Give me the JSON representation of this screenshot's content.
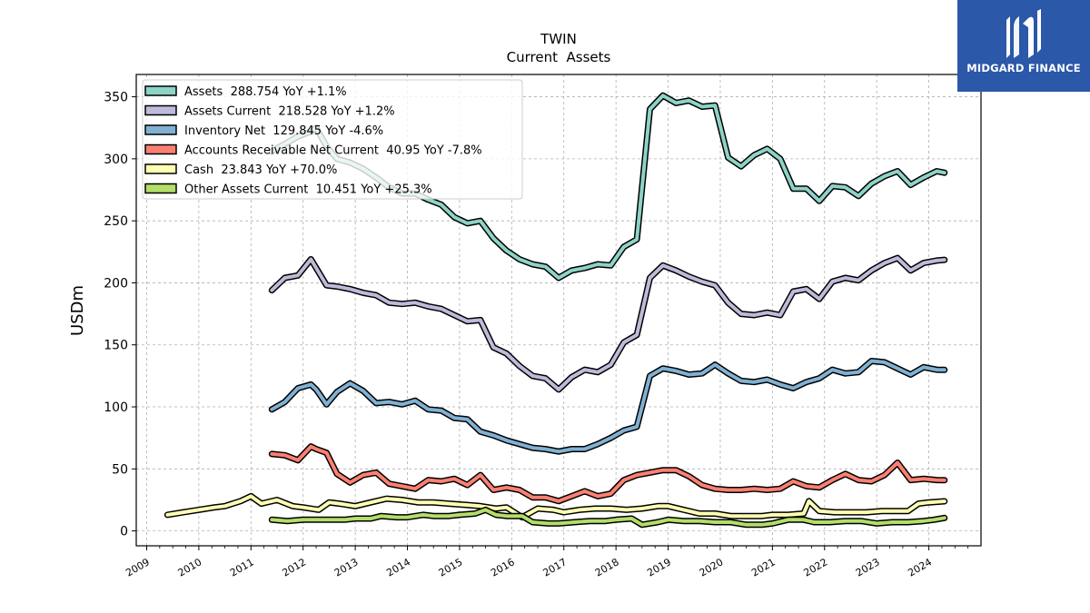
{
  "logo": {
    "text": "MIDGARD FINANCE",
    "icon": "midgard-m-logo-icon"
  },
  "colors": {
    "assets": "#8dd3c7",
    "assets_current": "#bebada",
    "inventory": "#80b1d3",
    "receivables": "#fb8072",
    "cash": "#ffffb3",
    "other": "#b3de69",
    "outline": "#000000",
    "logo_bg": "#2b58a8"
  },
  "chart_data": {
    "type": "line",
    "title": "TWIN",
    "subtitle": "Current  Assets",
    "xlabel": "",
    "ylabel": "USDm",
    "xlim": [
      2008.8,
      2025.0
    ],
    "ylim": [
      -12,
      368
    ],
    "yticks": [
      0,
      50,
      100,
      150,
      200,
      250,
      300,
      350
    ],
    "xticks": [
      "2009",
      "2010",
      "2011",
      "2012",
      "2013",
      "2014",
      "2015",
      "2016",
      "2017",
      "2018",
      "2019",
      "2020",
      "2021",
      "2022",
      "2023",
      "2024"
    ],
    "grid": true,
    "legend_position": "top-left",
    "series": [
      {
        "name": "Assets  288.754 YoY +1.1%",
        "color_key": "assets",
        "x": [
          2011.4,
          2011.65,
          2011.9,
          2012.15,
          2012.25,
          2012.45,
          2012.65,
          2012.9,
          2013.15,
          2013.4,
          2013.65,
          2013.9,
          2014.15,
          2014.4,
          2014.65,
          2014.9,
          2015.15,
          2015.4,
          2015.65,
          2015.9,
          2016.15,
          2016.4,
          2016.65,
          2016.9,
          2017.15,
          2017.4,
          2017.65,
          2017.9,
          2018.15,
          2018.4,
          2018.65,
          2018.9,
          2019.15,
          2019.4,
          2019.65,
          2019.9,
          2020.15,
          2020.4,
          2020.65,
          2020.9,
          2021.15,
          2021.4,
          2021.65,
          2021.9,
          2022.15,
          2022.4,
          2022.65,
          2022.9,
          2023.15,
          2023.4,
          2023.65,
          2023.9,
          2024.15,
          2024.3
        ],
        "y": [
          306,
          312,
          318,
          322,
          325,
          310,
          300,
          297,
          292,
          285,
          277,
          272,
          272,
          267,
          263,
          253,
          248,
          250,
          236,
          226,
          219,
          215,
          213,
          204,
          210,
          212,
          215,
          214,
          229,
          235,
          340,
          351,
          345,
          347,
          342,
          343,
          301,
          294,
          303,
          308,
          300,
          276,
          276,
          266,
          278,
          277,
          270,
          280,
          286,
          290,
          279,
          285,
          290,
          288.754
        ]
      },
      {
        "name": "Assets Current  218.528 YoY +1.2%",
        "color_key": "assets_current",
        "x": [
          2011.4,
          2011.65,
          2011.9,
          2012.15,
          2012.25,
          2012.45,
          2012.65,
          2012.9,
          2013.15,
          2013.4,
          2013.65,
          2013.9,
          2014.15,
          2014.4,
          2014.65,
          2014.9,
          2015.15,
          2015.4,
          2015.65,
          2015.9,
          2016.15,
          2016.4,
          2016.65,
          2016.9,
          2017.15,
          2017.4,
          2017.65,
          2017.9,
          2018.15,
          2018.4,
          2018.65,
          2018.9,
          2019.15,
          2019.4,
          2019.65,
          2019.9,
          2020.15,
          2020.4,
          2020.65,
          2020.9,
          2021.15,
          2021.4,
          2021.65,
          2021.9,
          2022.15,
          2022.4,
          2022.65,
          2022.9,
          2023.15,
          2023.4,
          2023.65,
          2023.9,
          2024.15,
          2024.3
        ],
        "y": [
          194,
          204,
          206,
          219,
          212,
          198,
          197,
          195,
          192,
          190,
          184,
          183,
          184,
          181,
          179,
          174,
          169,
          170,
          148,
          143,
          133,
          125,
          123,
          114,
          124,
          130,
          128,
          134,
          152,
          158,
          204,
          214,
          210,
          205,
          201,
          198,
          184,
          175,
          174,
          176,
          174,
          193,
          195,
          187,
          201,
          204,
          202,
          210,
          216,
          220,
          210,
          216,
          218,
          218.528
        ]
      },
      {
        "name": "Inventory Net  129.845 YoY -4.6%",
        "color_key": "inventory",
        "x": [
          2011.4,
          2011.65,
          2011.9,
          2012.15,
          2012.25,
          2012.45,
          2012.65,
          2012.9,
          2013.15,
          2013.4,
          2013.65,
          2013.9,
          2014.15,
          2014.4,
          2014.65,
          2014.9,
          2015.15,
          2015.4,
          2015.65,
          2015.9,
          2016.15,
          2016.4,
          2016.65,
          2016.9,
          2017.15,
          2017.4,
          2017.65,
          2017.9,
          2018.15,
          2018.4,
          2018.65,
          2018.9,
          2019.15,
          2019.4,
          2019.65,
          2019.9,
          2020.15,
          2020.4,
          2020.65,
          2020.9,
          2021.15,
          2021.4,
          2021.65,
          2021.9,
          2022.15,
          2022.4,
          2022.65,
          2022.9,
          2023.15,
          2023.4,
          2023.65,
          2023.9,
          2024.15,
          2024.3
        ],
        "y": [
          98,
          104,
          115,
          118,
          114,
          102,
          112,
          119,
          113,
          103,
          104,
          102,
          105,
          98,
          97,
          91,
          90,
          80,
          77,
          73,
          70,
          67,
          66,
          64,
          66,
          66,
          70,
          75,
          81,
          84,
          125,
          131,
          129,
          126,
          127,
          134,
          127,
          121,
          120,
          122,
          118,
          115,
          120,
          123,
          130,
          127,
          128,
          137,
          136,
          131,
          126,
          132,
          130,
          129.845
        ]
      },
      {
        "name": "Accounts Receivable Net Current  40.95 YoY -7.8%",
        "color_key": "receivables",
        "x": [
          2011.4,
          2011.65,
          2011.9,
          2012.15,
          2012.25,
          2012.45,
          2012.65,
          2012.9,
          2013.15,
          2013.4,
          2013.65,
          2013.9,
          2014.15,
          2014.4,
          2014.65,
          2014.9,
          2015.15,
          2015.4,
          2015.65,
          2015.9,
          2016.15,
          2016.4,
          2016.65,
          2016.9,
          2017.15,
          2017.4,
          2017.65,
          2017.9,
          2018.15,
          2018.4,
          2018.65,
          2018.9,
          2019.15,
          2019.4,
          2019.65,
          2019.9,
          2020.15,
          2020.4,
          2020.65,
          2020.9,
          2021.15,
          2021.4,
          2021.65,
          2021.9,
          2022.15,
          2022.4,
          2022.65,
          2022.9,
          2023.15,
          2023.4,
          2023.65,
          2023.9,
          2024.15,
          2024.3
        ],
        "y": [
          62,
          61,
          57,
          68,
          66,
          63,
          46,
          39,
          45,
          47,
          38,
          36,
          34,
          41,
          40,
          42,
          37,
          45,
          33,
          35,
          33,
          27,
          27,
          24,
          28,
          32,
          28,
          30,
          41,
          45,
          47,
          49,
          49,
          44,
          37,
          34,
          33,
          33,
          34,
          33,
          34,
          40,
          36,
          35,
          41,
          46,
          41,
          40,
          45,
          55,
          41,
          42,
          41,
          40.95
        ]
      },
      {
        "name": "Cash  23.843 YoY +70.0%",
        "color_key": "cash",
        "x": [
          2009.4,
          2009.7,
          2010.0,
          2010.3,
          2010.5,
          2010.8,
          2011.0,
          2011.2,
          2011.5,
          2011.8,
          2012.0,
          2012.3,
          2012.5,
          2012.7,
          2013.0,
          2013.3,
          2013.6,
          2013.9,
          2014.2,
          2014.5,
          2014.8,
          2015.1,
          2015.4,
          2015.7,
          2015.9,
          2016.2,
          2016.5,
          2016.8,
          2017.0,
          2017.3,
          2017.6,
          2017.9,
          2018.2,
          2018.5,
          2018.8,
          2019.0,
          2019.3,
          2019.6,
          2019.9,
          2020.2,
          2020.5,
          2020.8,
          2021.0,
          2021.3,
          2021.6,
          2021.7,
          2021.9,
          2022.2,
          2022.5,
          2022.8,
          2023.1,
          2023.4,
          2023.6,
          2023.8,
          2024.0,
          2024.3
        ],
        "y": [
          13,
          15,
          17,
          19,
          20,
          24,
          28,
          22,
          25,
          20,
          19,
          17,
          23,
          22,
          20,
          23,
          26,
          25,
          23,
          23,
          22,
          21,
          20,
          18,
          19,
          11,
          18,
          17,
          15,
          17,
          18,
          18,
          17,
          18,
          20,
          20,
          17,
          14,
          14,
          12,
          12,
          12,
          13,
          13,
          14,
          24,
          16,
          15,
          15,
          15,
          16,
          16,
          16,
          22,
          23,
          23.843
        ]
      },
      {
        "name": "Other Assets Current  10.451 YoY +25.3%",
        "color_key": "other",
        "x": [
          2011.4,
          2011.7,
          2012.0,
          2012.3,
          2012.5,
          2012.8,
          2013.0,
          2013.3,
          2013.5,
          2013.8,
          2014.0,
          2014.3,
          2014.5,
          2014.8,
          2015.0,
          2015.3,
          2015.5,
          2015.7,
          2015.9,
          2016.2,
          2016.4,
          2016.7,
          2016.9,
          2017.2,
          2017.5,
          2017.8,
          2018.0,
          2018.3,
          2018.5,
          2018.8,
          2019.0,
          2019.3,
          2019.6,
          2019.9,
          2020.2,
          2020.5,
          2020.8,
          2021.0,
          2021.3,
          2021.6,
          2021.8,
          2022.1,
          2022.4,
          2022.7,
          2023.0,
          2023.3,
          2023.6,
          2023.9,
          2024.1,
          2024.3
        ],
        "y": [
          9,
          8,
          9,
          9,
          9,
          9,
          10,
          10,
          12,
          11,
          11,
          13,
          12,
          12,
          13,
          14,
          17,
          13,
          12,
          12,
          7,
          6,
          6,
          7,
          8,
          8,
          9,
          10,
          5,
          7,
          9,
          8,
          8,
          7,
          7,
          5,
          5,
          6,
          9,
          9,
          7,
          7,
          8,
          8,
          6,
          7,
          7,
          8,
          9,
          10.451
        ]
      }
    ]
  }
}
